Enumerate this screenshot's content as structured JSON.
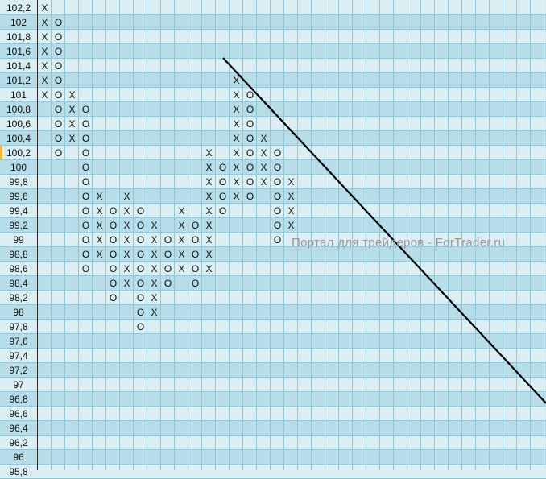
{
  "chart_data": {
    "type": "point-and-figure",
    "title": "",
    "box_size": 0.2,
    "price_labels": [
      "102,2",
      "102",
      "101,8",
      "101,6",
      "101,4",
      "101,2",
      "101",
      "100,8",
      "100,6",
      "100,4",
      "100,2",
      "100",
      "99,8",
      "99,6",
      "99,4",
      "99,2",
      "99",
      "98,8",
      "98,6",
      "98,4",
      "98,2",
      "98",
      "97,8",
      "97,6",
      "97,4",
      "97,2",
      "97",
      "96,8",
      "96,6",
      "96,4",
      "96,2",
      "96",
      "95,8"
    ],
    "price_top": 102.2,
    "selected_price": "100,2",
    "columns": [
      {
        "type": "X",
        "high": 102.2,
        "low": 101.0
      },
      {
        "type": "O",
        "high": 102.0,
        "low": 100.2
      },
      {
        "type": "X",
        "high": 101.0,
        "low": 100.4
      },
      {
        "type": "O",
        "high": 100.8,
        "low": 98.6
      },
      {
        "type": "X",
        "high": 99.6,
        "low": 98.8
      },
      {
        "type": "O",
        "high": 99.4,
        "low": 98.2
      },
      {
        "type": "X",
        "high": 99.6,
        "low": 98.4
      },
      {
        "type": "O",
        "high": 99.4,
        "low": 97.8
      },
      {
        "type": "X",
        "high": 99.2,
        "low": 98.0
      },
      {
        "type": "O",
        "high": 99.0,
        "low": 98.4
      },
      {
        "type": "X",
        "high": 99.4,
        "low": 98.6
      },
      {
        "type": "O",
        "high": 99.2,
        "low": 98.4
      },
      {
        "type": "X",
        "high": 100.2,
        "low": 98.6
      },
      {
        "type": "O",
        "high": 100.0,
        "low": 99.4
      },
      {
        "type": "X",
        "high": 101.2,
        "low": 99.6
      },
      {
        "type": "O",
        "high": 101.0,
        "low": 99.6
      },
      {
        "type": "X",
        "high": 100.4,
        "low": 99.8
      },
      {
        "type": "O",
        "high": 100.2,
        "low": 99.0
      },
      {
        "type": "X",
        "high": 99.8,
        "low": 99.2
      }
    ],
    "trendline": {
      "type": "bearish resistance",
      "start": {
        "column": 14,
        "price": 101.4
      },
      "slope_boxes_per_column": -1
    },
    "colors": {
      "row_light": "#daeef3",
      "row_dark": "#b7dde8",
      "grid": "#93c6d6",
      "trendline": "#000000",
      "watermark": "#9a9a9a"
    }
  },
  "watermark": "Портал для трейдеров - ForTrader.ru"
}
